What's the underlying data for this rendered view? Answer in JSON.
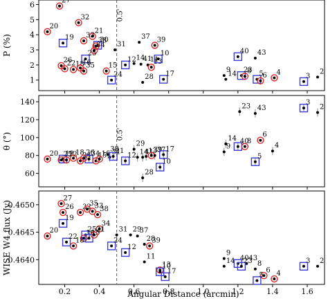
{
  "chart_data": {
    "type": "scatter",
    "xlabel": "Angular Distance (arcmin)",
    "xlim": [
      0.05,
      1.7
    ],
    "xticks": [
      0.2,
      0.4,
      0.6,
      0.8,
      1.0,
      1.2,
      1.4,
      1.6
    ],
    "xtick_labels": [
      "0.2",
      "0.4",
      "0.6",
      "0.8",
      "1.0",
      "1.2",
      "1.4",
      "1.6"
    ],
    "vline_x": 0.5,
    "vline_label": "0.5'",
    "colors": {
      "point": "#000000",
      "circle": "#d62728",
      "square": "#3b3bd6",
      "vline": "#555555",
      "errorbar": "#888888"
    },
    "panels": [
      {
        "ylabel": "P (%)",
        "ylim": [
          0.3,
          6.3
        ],
        "yticks": [
          1,
          2,
          3,
          4,
          5,
          6
        ],
        "ytick_labels": [
          "1",
          "2",
          "3",
          "4",
          "5",
          "6"
        ],
        "points": [
          {
            "id": "27",
            "x": 0.17,
            "y": 5.9,
            "m": "circle"
          },
          {
            "id": "20",
            "x": 0.1,
            "y": 4.2,
            "m": "circle"
          },
          {
            "id": "32",
            "x": 0.28,
            "y": 4.8,
            "m": "circle"
          },
          {
            "id": "19",
            "x": 0.19,
            "y": 3.45,
            "m": "square"
          },
          {
            "id": "21",
            "x": 0.36,
            "y": 3.9,
            "m": "circle"
          },
          {
            "id": "33",
            "x": 0.31,
            "y": 3.6,
            "m": "circle"
          },
          {
            "id": "30",
            "x": 0.39,
            "y": 3.3,
            "m": "square"
          },
          {
            "id": "38",
            "x": 0.38,
            "y": 3.25,
            "m": "circle"
          },
          {
            "id": "34",
            "x": 0.37,
            "y": 2.95,
            "m": "circle"
          },
          {
            "id": "25",
            "x": 0.32,
            "y": 2.4,
            "m": "square"
          },
          {
            "id": "31",
            "x": 0.49,
            "y": 3.0,
            "m": "none"
          },
          {
            "id": "26",
            "x": 0.18,
            "y": 1.95,
            "m": "circle"
          },
          {
            "id": "22",
            "x": 0.2,
            "y": 1.75,
            "m": "circle"
          },
          {
            "id": "18",
            "x": 0.25,
            "y": 1.7,
            "m": "circle"
          },
          {
            "id": "16",
            "x": 0.29,
            "y": 1.8,
            "m": "circle"
          },
          {
            "id": "35",
            "x": 0.31,
            "y": 1.6,
            "m": "circle"
          },
          {
            "id": "15",
            "x": 0.44,
            "y": 1.6,
            "m": "circle"
          },
          {
            "id": "24",
            "x": 0.47,
            "y": 1.0,
            "m": "square"
          },
          {
            "id": "37",
            "x": 0.63,
            "y": 3.5,
            "m": "none"
          },
          {
            "id": "39",
            "x": 0.72,
            "y": 3.3,
            "m": "circle"
          },
          {
            "id": "12",
            "x": 0.55,
            "y": 2.0,
            "m": "square"
          },
          {
            "id": "14",
            "x": 0.6,
            "y": 2.1,
            "m": "none"
          },
          {
            "id": "41",
            "x": 0.64,
            "y": 2.05,
            "m": "none"
          },
          {
            "id": "11",
            "x": 0.68,
            "y": 2.0,
            "m": "none"
          },
          {
            "id": "13",
            "x": 0.7,
            "y": 1.85,
            "m": "circle"
          },
          {
            "id": "10",
            "x": 0.74,
            "y": 2.4,
            "m": "square"
          },
          {
            "id": "28",
            "x": 0.65,
            "y": 0.85,
            "m": "none"
          },
          {
            "id": "17",
            "x": 0.77,
            "y": 1.05,
            "m": "square"
          },
          {
            "id": "40",
            "x": 1.2,
            "y": 2.55,
            "m": "square"
          },
          {
            "id": "43",
            "x": 1.3,
            "y": 2.45,
            "m": "none"
          },
          {
            "id": "9",
            "x": 1.12,
            "y": 1.3,
            "m": "none"
          },
          {
            "id": "14b",
            "label": "14",
            "x": 1.13,
            "y": 1.05,
            "m": "none"
          },
          {
            "id": "23",
            "x": 1.22,
            "y": 1.3,
            "m": "square"
          },
          {
            "id": "8",
            "x": 1.24,
            "y": 1.25,
            "m": "circle"
          },
          {
            "id": "5",
            "x": 1.31,
            "y": 1.05,
            "m": "square"
          },
          {
            "id": "6",
            "x": 1.33,
            "y": 0.95,
            "m": "circle"
          },
          {
            "id": "4",
            "x": 1.41,
            "y": 1.15,
            "m": "circle"
          },
          {
            "id": "3",
            "x": 1.58,
            "y": 0.9,
            "m": "square"
          },
          {
            "id": "2",
            "x": 1.66,
            "y": 1.2,
            "m": "none"
          }
        ]
      },
      {
        "ylabel": "θ (°)",
        "ylim": [
          45,
          147
        ],
        "yticks": [
          60,
          80,
          100,
          120,
          140
        ],
        "ytick_labels": [
          "60",
          "80",
          "100",
          "120",
          "140"
        ],
        "points": [
          {
            "id": "20",
            "x": 0.1,
            "y": 76,
            "m": "circle"
          },
          {
            "id": "25",
            "x": 0.18,
            "y": 75,
            "m": "circle"
          },
          {
            "id": "19",
            "x": 0.19,
            "y": 76,
            "m": "square"
          },
          {
            "id": "22",
            "x": 0.21,
            "y": 75,
            "m": "circle"
          },
          {
            "id": "18",
            "x": 0.25,
            "y": 77,
            "m": "circle"
          },
          {
            "id": "24",
            "x": 0.29,
            "y": 74,
            "m": "circle"
          },
          {
            "id": "34",
            "x": 0.34,
            "y": 76,
            "m": "square"
          },
          {
            "id": "26",
            "x": 0.31,
            "y": 77,
            "m": "circle"
          },
          {
            "id": "15",
            "x": 0.38,
            "y": 74,
            "m": "circle"
          },
          {
            "id": "16",
            "x": 0.4,
            "y": 76,
            "m": "circle"
          },
          {
            "id": "38",
            "x": 0.45,
            "y": 81,
            "m": "none"
          },
          {
            "id": "31",
            "x": 0.46,
            "y": 78,
            "m": "none"
          },
          {
            "id": "21",
            "x": 0.48,
            "y": 79,
            "m": "square"
          },
          {
            "id": "29",
            "x": 0.6,
            "y": 87,
            "m": "none"
          },
          {
            "id": "12",
            "x": 0.55,
            "y": 74,
            "m": "square"
          },
          {
            "id": "14",
            "x": 0.62,
            "y": 78,
            "m": "none"
          },
          {
            "id": "41",
            "x": 0.65,
            "y": 78,
            "m": "none"
          },
          {
            "id": "13",
            "x": 0.67,
            "y": 79,
            "m": "none"
          },
          {
            "id": "39",
            "x": 0.7,
            "y": 80,
            "m": "circle"
          },
          {
            "id": "37",
            "x": 0.72,
            "y": 80,
            "m": "none"
          },
          {
            "id": "17",
            "x": 0.77,
            "y": 81,
            "m": "square"
          },
          {
            "id": "10",
            "x": 0.75,
            "y": 67,
            "m": "square"
          },
          {
            "id": "28",
            "x": 0.65,
            "y": 55,
            "m": "none"
          },
          {
            "id": "23",
            "x": 1.21,
            "y": 129,
            "m": "none"
          },
          {
            "id": "43",
            "x": 1.3,
            "y": 127,
            "m": "none"
          },
          {
            "id": "14b",
            "label": "14",
            "x": 1.13,
            "y": 93,
            "m": "none"
          },
          {
            "id": "9",
            "x": 1.12,
            "y": 84,
            "m": "none"
          },
          {
            "id": "40",
            "x": 1.2,
            "y": 90,
            "m": "square"
          },
          {
            "id": "8",
            "x": 1.24,
            "y": 90,
            "m": "circle"
          },
          {
            "id": "6",
            "x": 1.33,
            "y": 97,
            "m": "circle"
          },
          {
            "id": "5",
            "x": 1.3,
            "y": 73,
            "m": "square"
          },
          {
            "id": "4",
            "x": 1.4,
            "y": 85,
            "m": "none"
          },
          {
            "id": "3",
            "x": 1.58,
            "y": 133,
            "m": "square"
          },
          {
            "id": "2",
            "x": 1.66,
            "y": 128,
            "m": "none"
          }
        ]
      },
      {
        "ylabel": "WISE W4 flux (Jy)",
        "ylim": [
          0.46355,
          0.46525
        ],
        "yticks": [
          0.464,
          0.4645,
          0.465
        ],
        "ytick_labels": [
          "0.4640",
          "0.4645",
          "0.4650"
        ],
        "points": [
          {
            "id": "27",
            "x": 0.18,
            "y": 0.46502,
            "m": "circle"
          },
          {
            "id": "26",
            "x": 0.19,
            "y": 0.46486,
            "m": "circle"
          },
          {
            "id": "32",
            "x": 0.29,
            "y": 0.46486,
            "m": "circle"
          },
          {
            "id": "35",
            "x": 0.33,
            "y": 0.46492,
            "m": "circle"
          },
          {
            "id": "33",
            "x": 0.36,
            "y": 0.46488,
            "m": "circle"
          },
          {
            "id": "38",
            "x": 0.39,
            "y": 0.46482,
            "m": "circle"
          },
          {
            "id": "19",
            "x": 0.19,
            "y": 0.46466,
            "m": "square"
          },
          {
            "id": "34",
            "x": 0.4,
            "y": 0.46456,
            "m": "circle"
          },
          {
            "id": "20",
            "x": 0.1,
            "y": 0.46443,
            "m": "circle"
          },
          {
            "id": "25",
            "x": 0.32,
            "y": 0.46445,
            "m": "square"
          },
          {
            "id": "16",
            "x": 0.31,
            "y": 0.46439,
            "m": "circle"
          },
          {
            "id": "15",
            "x": 0.34,
            "y": 0.46439,
            "m": "square"
          },
          {
            "id": "21",
            "x": 0.37,
            "y": 0.46445,
            "m": "circle"
          },
          {
            "id": "18",
            "x": 0.25,
            "y": 0.46425,
            "m": "circle"
          },
          {
            "id": "22",
            "x": 0.21,
            "y": 0.46432,
            "m": "square"
          },
          {
            "id": "31",
            "x": 0.5,
            "y": 0.46445,
            "m": "none"
          },
          {
            "id": "24",
            "x": 0.47,
            "y": 0.46425,
            "m": "square"
          },
          {
            "id": "29",
            "x": 0.58,
            "y": 0.46445,
            "m": "none"
          },
          {
            "id": "37",
            "x": 0.62,
            "y": 0.46443,
            "m": "none"
          },
          {
            "id": "12",
            "x": 0.55,
            "y": 0.46413,
            "m": "square"
          },
          {
            "id": "28",
            "x": 0.66,
            "y": 0.46428,
            "m": "none"
          },
          {
            "id": "39",
            "x": 0.69,
            "y": 0.46425,
            "m": "circle"
          },
          {
            "id": "11",
            "x": 0.66,
            "y": 0.46396,
            "m": "none"
          },
          {
            "id": "13",
            "x": 0.75,
            "y": 0.46381,
            "m": "circle"
          },
          {
            "id": "10",
            "x": 0.75,
            "y": 0.46378,
            "m": "square"
          },
          {
            "id": "17",
            "x": 0.78,
            "y": 0.46369,
            "m": "square"
          },
          {
            "id": "9",
            "x": 1.12,
            "y": 0.46402,
            "m": "none"
          },
          {
            "id": "14",
            "x": 1.12,
            "y": 0.46388,
            "m": "none"
          },
          {
            "id": "40",
            "x": 1.2,
            "y": 0.46393,
            "m": "square"
          },
          {
            "id": "43",
            "x": 1.25,
            "y": 0.46393,
            "m": "none"
          },
          {
            "id": "23",
            "x": 1.22,
            "y": 0.46388,
            "m": "square"
          },
          {
            "id": "8",
            "x": 1.3,
            "y": 0.46383,
            "m": "none"
          },
          {
            "id": "6",
            "x": 1.35,
            "y": 0.46371,
            "m": "circle"
          },
          {
            "id": "5",
            "x": 1.31,
            "y": 0.46362,
            "m": "square"
          },
          {
            "id": "4",
            "x": 1.41,
            "y": 0.46365,
            "m": "circle"
          },
          {
            "id": "3",
            "x": 1.58,
            "y": 0.46388,
            "m": "square"
          },
          {
            "id": "2",
            "x": 1.66,
            "y": 0.46388,
            "m": "none"
          }
        ]
      }
    ]
  }
}
